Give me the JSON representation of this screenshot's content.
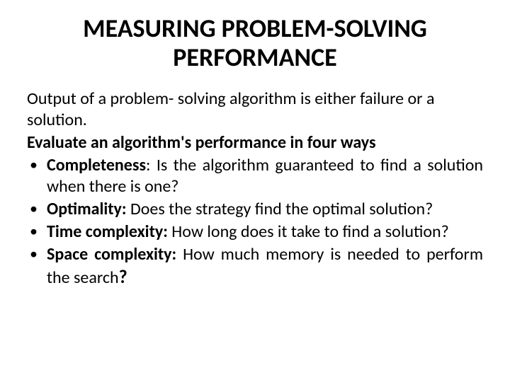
{
  "title": "MEASURING PROBLEM-SOLVING PERFORMANCE",
  "intro": "Output of a problem- solving algorithm is either failure or a solution.",
  "subheading": "Evaluate an algorithm's performance in four ways",
  "bullets": [
    {
      "term": "Completeness",
      "colon": ":",
      "desc": " Is the algorithm guaranteed to find a solution when there is one?"
    },
    {
      "term": "Optimality:",
      "colon": "",
      "desc": " Does the strategy find the optimal solution?"
    },
    {
      "term": "Time complexity:",
      "colon": "",
      "desc": " How long does it take to find a solution?"
    },
    {
      "term": "Space complexity:",
      "colon": "",
      "desc": " How much memory is needed to perform the search"
    }
  ],
  "final_qmark": "?",
  "colors": {
    "background": "#ffffff",
    "text": "#000000"
  },
  "fontsizes": {
    "title": 36,
    "body": 24
  }
}
